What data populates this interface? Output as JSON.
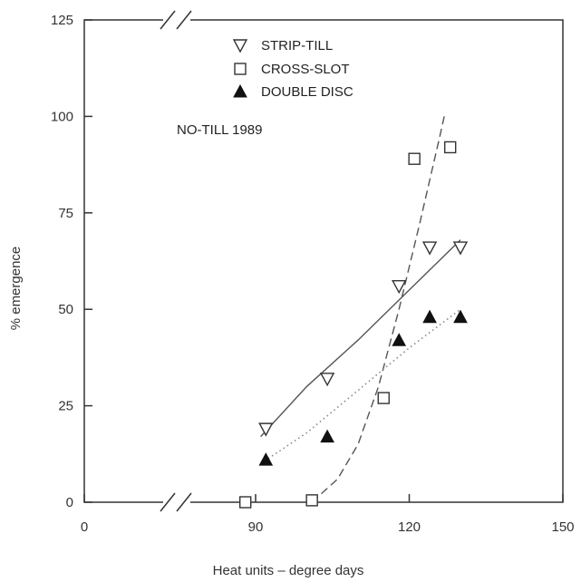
{
  "chart_data": {
    "type": "scatter",
    "annotation": "NO-TILL 1989",
    "xlabel": "Heat units – degree days",
    "ylabel": "% emergence",
    "xlim": [
      0,
      150
    ],
    "ylim": [
      0,
      125
    ],
    "x_axis_break": true,
    "x_ticks": [
      0,
      90,
      120,
      150
    ],
    "y_ticks": [
      0,
      25,
      50,
      75,
      100,
      125
    ],
    "grid": false,
    "legend_position": "top-center",
    "series": [
      {
        "name": "STRIP-TILL",
        "marker": "triangle-down-open",
        "line_style": "solid",
        "points": [
          {
            "x": 92,
            "y": 19
          },
          {
            "x": 104,
            "y": 32
          },
          {
            "x": 118,
            "y": 56
          },
          {
            "x": 124,
            "y": 66
          },
          {
            "x": 130,
            "y": 66
          }
        ],
        "fit": [
          [
            91,
            17
          ],
          [
            100,
            30
          ],
          [
            110,
            42
          ],
          [
            120,
            55
          ],
          [
            130,
            68
          ]
        ]
      },
      {
        "name": "CROSS-SLOT",
        "marker": "square-open",
        "line_style": "dashed",
        "points": [
          {
            "x": 88,
            "y": 0
          },
          {
            "x": 101,
            "y": 0.5
          },
          {
            "x": 115,
            "y": 27
          },
          {
            "x": 121,
            "y": 89
          },
          {
            "x": 128,
            "y": 92
          }
        ],
        "fit": [
          [
            101,
            0
          ],
          [
            106,
            6
          ],
          [
            110,
            15
          ],
          [
            114,
            30
          ],
          [
            118,
            50
          ],
          [
            122,
            72
          ],
          [
            126,
            95
          ],
          [
            127,
            101
          ]
        ]
      },
      {
        "name": "DOUBLE DISC",
        "marker": "triangle-up-filled",
        "line_style": "dotted",
        "points": [
          {
            "x": 92,
            "y": 11
          },
          {
            "x": 104,
            "y": 17
          },
          {
            "x": 118,
            "y": 42
          },
          {
            "x": 124,
            "y": 48
          },
          {
            "x": 130,
            "y": 48
          }
        ],
        "fit": [
          [
            91,
            10
          ],
          [
            100,
            18
          ],
          [
            110,
            29
          ],
          [
            120,
            40
          ],
          [
            130,
            50
          ]
        ]
      }
    ]
  }
}
